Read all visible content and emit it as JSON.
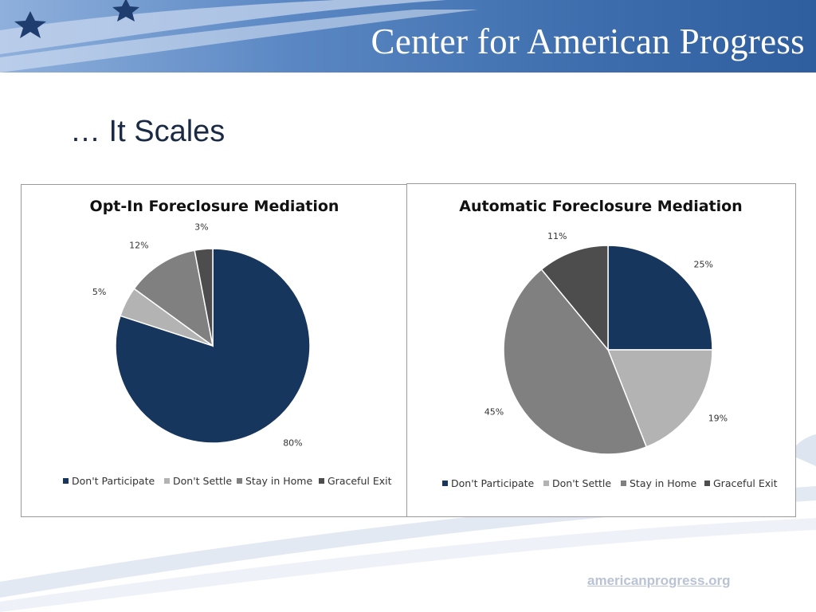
{
  "header": {
    "org_name": "Center for American Progress"
  },
  "slide": {
    "title": "… It Scales",
    "footer_url": "americanprogress.org"
  },
  "colors": {
    "dont_participate": "#17365d",
    "dont_settle": "#b3b3b3",
    "stay_in_home": "#808080",
    "graceful_exit": "#4d4d4d"
  },
  "chart_data": [
    {
      "type": "pie",
      "title": "Opt-In Foreclosure Mediation",
      "categories": [
        "Don't Participate",
        "Don't Settle",
        "Stay in Home",
        "Graceful Exit"
      ],
      "values": [
        80,
        5,
        12,
        3
      ],
      "labels": [
        "80%",
        "5%",
        "12%",
        "3%"
      ],
      "legend_position": "bottom"
    },
    {
      "type": "pie",
      "title": "Automatic Foreclosure Mediation",
      "categories": [
        "Don't Participate",
        "Don't Settle",
        "Stay in Home",
        "Graceful Exit"
      ],
      "values": [
        25,
        19,
        45,
        11
      ],
      "labels": [
        "25%",
        "19%",
        "45%",
        "11%"
      ],
      "legend_position": "bottom"
    }
  ]
}
